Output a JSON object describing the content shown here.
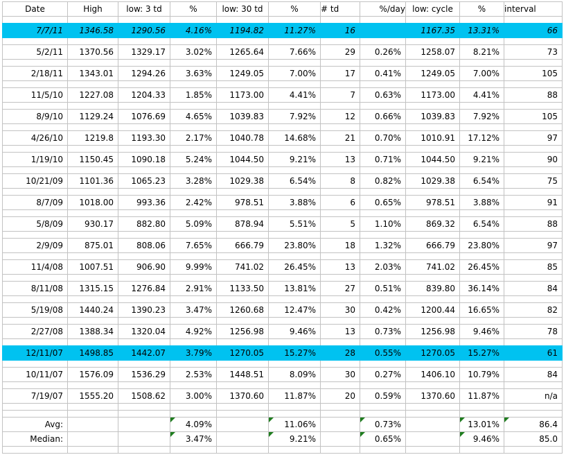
{
  "colors": {
    "highlight": "#00c2f0",
    "gridline": "#c2c2c2",
    "indicator_green": "#1f7d1f"
  },
  "columns": [
    {
      "label": "Date"
    },
    {
      "label": "High"
    },
    {
      "label": "low: 3 td"
    },
    {
      "label": "%"
    },
    {
      "label": "low: 30 td"
    },
    {
      "label": "%"
    },
    {
      "label": "# td"
    },
    {
      "label": "%/day"
    },
    {
      "label": "low: cycle"
    },
    {
      "label": "%"
    },
    {
      "label": "interval"
    }
  ],
  "rows": [
    {
      "cells": [
        "7/7/11",
        "1346.58",
        "1290.56",
        "4.16%",
        "1194.82",
        "11.27%",
        "16",
        "",
        "1167.35",
        "13.31%",
        "66"
      ],
      "highlight": true,
      "italic": true
    },
    {
      "cells": [
        "5/2/11",
        "1370.56",
        "1329.17",
        "3.02%",
        "1265.64",
        "7.66%",
        "29",
        "0.26%",
        "1258.07",
        "8.21%",
        "73"
      ],
      "highlight": false,
      "italic": false
    },
    {
      "cells": [
        "2/18/11",
        "1343.01",
        "1294.26",
        "3.63%",
        "1249.05",
        "7.00%",
        "17",
        "0.41%",
        "1249.05",
        "7.00%",
        "105"
      ],
      "highlight": false,
      "italic": false
    },
    {
      "cells": [
        "11/5/10",
        "1227.08",
        "1204.33",
        "1.85%",
        "1173.00",
        "4.41%",
        "7",
        "0.63%",
        "1173.00",
        "4.41%",
        "88"
      ],
      "highlight": false,
      "italic": false
    },
    {
      "cells": [
        "8/9/10",
        "1129.24",
        "1076.69",
        "4.65%",
        "1039.83",
        "7.92%",
        "12",
        "0.66%",
        "1039.83",
        "7.92%",
        "105"
      ],
      "highlight": false,
      "italic": false
    },
    {
      "cells": [
        "4/26/10",
        "1219.8",
        "1193.30",
        "2.17%",
        "1040.78",
        "14.68%",
        "21",
        "0.70%",
        "1010.91",
        "17.12%",
        "97"
      ],
      "highlight": false,
      "italic": false
    },
    {
      "cells": [
        "1/19/10",
        "1150.45",
        "1090.18",
        "5.24%",
        "1044.50",
        "9.21%",
        "13",
        "0.71%",
        "1044.50",
        "9.21%",
        "90"
      ],
      "highlight": false,
      "italic": false
    },
    {
      "cells": [
        "10/21/09",
        "1101.36",
        "1065.23",
        "3.28%",
        "1029.38",
        "6.54%",
        "8",
        "0.82%",
        "1029.38",
        "6.54%",
        "75"
      ],
      "highlight": false,
      "italic": false
    },
    {
      "cells": [
        "8/7/09",
        "1018.00",
        "993.36",
        "2.42%",
        "978.51",
        "3.88%",
        "6",
        "0.65%",
        "978.51",
        "3.88%",
        "91"
      ],
      "highlight": false,
      "italic": false
    },
    {
      "cells": [
        "5/8/09",
        "930.17",
        "882.80",
        "5.09%",
        "878.94",
        "5.51%",
        "5",
        "1.10%",
        "869.32",
        "6.54%",
        "88"
      ],
      "highlight": false,
      "italic": false
    },
    {
      "cells": [
        "2/9/09",
        "875.01",
        "808.06",
        "7.65%",
        "666.79",
        "23.80%",
        "18",
        "1.32%",
        "666.79",
        "23.80%",
        "97"
      ],
      "highlight": false,
      "italic": false
    },
    {
      "cells": [
        "11/4/08",
        "1007.51",
        "906.90",
        "9.99%",
        "741.02",
        "26.45%",
        "13",
        "2.03%",
        "741.02",
        "26.45%",
        "85"
      ],
      "highlight": false,
      "italic": false
    },
    {
      "cells": [
        "8/11/08",
        "1315.15",
        "1276.84",
        "2.91%",
        "1133.50",
        "13.81%",
        "27",
        "0.51%",
        "839.80",
        "36.14%",
        "84"
      ],
      "highlight": false,
      "italic": false
    },
    {
      "cells": [
        "5/19/08",
        "1440.24",
        "1390.23",
        "3.47%",
        "1260.68",
        "12.47%",
        "30",
        "0.42%",
        "1200.44",
        "16.65%",
        "82"
      ],
      "highlight": false,
      "italic": false
    },
    {
      "cells": [
        "2/27/08",
        "1388.34",
        "1320.04",
        "4.92%",
        "1256.98",
        "9.46%",
        "13",
        "0.73%",
        "1256.98",
        "9.46%",
        "78"
      ],
      "highlight": false,
      "italic": false
    },
    {
      "cells": [
        "12/11/07",
        "1498.85",
        "1442.07",
        "3.79%",
        "1270.05",
        "15.27%",
        "28",
        "0.55%",
        "1270.05",
        "15.27%",
        "61"
      ],
      "highlight": true,
      "italic": false
    },
    {
      "cells": [
        "10/11/07",
        "1576.09",
        "1536.29",
        "2.53%",
        "1448.51",
        "8.09%",
        "30",
        "0.27%",
        "1406.10",
        "10.79%",
        "84"
      ],
      "highlight": false,
      "italic": false
    },
    {
      "cells": [
        "7/19/07",
        "1555.20",
        "1508.62",
        "3.00%",
        "1370.60",
        "11.87%",
        "20",
        "0.59%",
        "1370.60",
        "11.87%",
        "n/a"
      ],
      "highlight": false,
      "italic": false
    }
  ],
  "summary": [
    {
      "cells": [
        "Avg:",
        "",
        "",
        "4.09%",
        "",
        "11.06%",
        "",
        "0.73%",
        "",
        "13.01%",
        "86.4"
      ],
      "triangles": [
        3,
        5,
        7,
        9,
        10
      ]
    },
    {
      "cells": [
        "Median:",
        "",
        "",
        "3.47%",
        "",
        "9.21%",
        "",
        "0.65%",
        "",
        "9.46%",
        "85.0"
      ],
      "triangles": [
        3,
        5,
        7,
        9
      ]
    }
  ]
}
